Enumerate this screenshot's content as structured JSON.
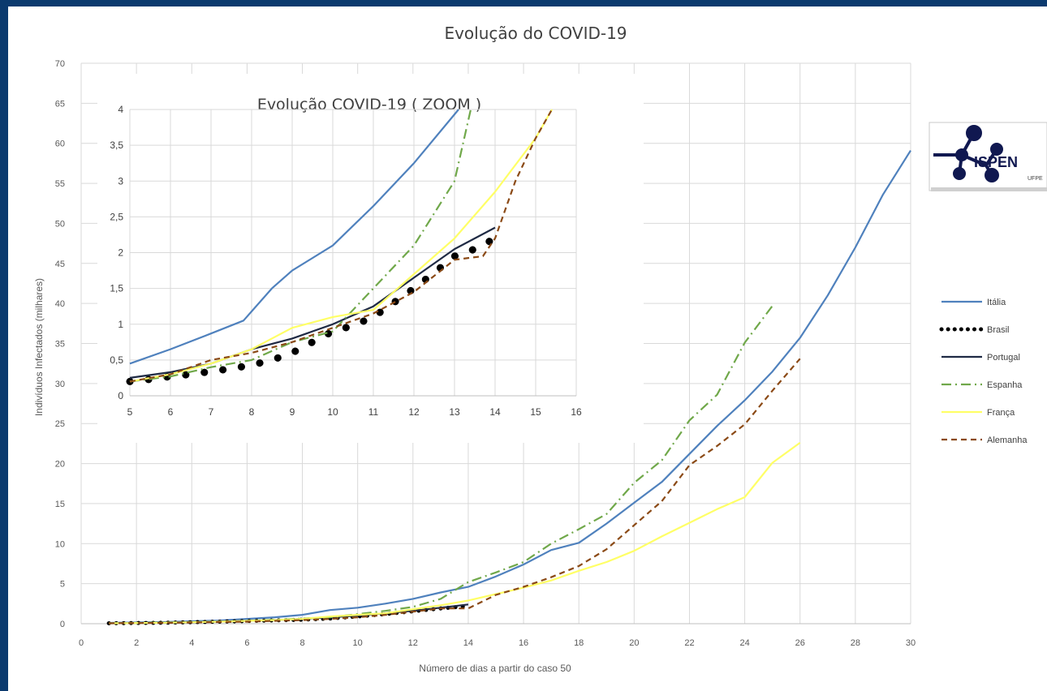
{
  "chart_data": [
    {
      "type": "line",
      "title": "Evolução do COVID-19",
      "xlabel": "Número de dias a partir do caso 50",
      "ylabel": "Indivíduos Infectados (milhares)",
      "xlim": [
        0,
        30
      ],
      "ylim": [
        0,
        70
      ],
      "xticks": [
        "0",
        "2",
        "4",
        "6",
        "8",
        "10",
        "12",
        "14",
        "16",
        "18",
        "20",
        "22",
        "24",
        "26",
        "28",
        "30"
      ],
      "yticks": [
        "0",
        "5",
        "10",
        "15",
        "20",
        "25",
        "30",
        "35",
        "40",
        "45",
        "50",
        "55",
        "60",
        "65",
        "70"
      ],
      "grid": true,
      "legend_position": "right",
      "series": [
        {
          "name": "Itália",
          "color": "#4f81bd",
          "style": "solid",
          "x": [
            1,
            2,
            3,
            4,
            5,
            6,
            7,
            8,
            9,
            10,
            11,
            12,
            13,
            14,
            15,
            16,
            17,
            18,
            19,
            20,
            21,
            22,
            23,
            24,
            25,
            26,
            27,
            28,
            29,
            30
          ],
          "y": [
            0.1,
            0.15,
            0.2,
            0.3,
            0.4,
            0.6,
            0.8,
            1.1,
            1.7,
            2.0,
            2.5,
            3.1,
            3.9,
            4.6,
            5.9,
            7.4,
            9.2,
            10.1,
            12.5,
            15.1,
            17.7,
            21.2,
            24.7,
            27.9,
            31.5,
            35.7,
            41.0,
            47.0,
            53.6,
            59.1
          ]
        },
        {
          "name": "Brasil",
          "color": "#000000",
          "style": "dotted",
          "x": [
            1,
            2,
            3,
            4,
            5,
            6,
            7,
            8,
            9,
            10,
            11,
            12,
            13,
            14
          ],
          "y": [
            0.05,
            0.08,
            0.12,
            0.18,
            0.25,
            0.33,
            0.42,
            0.5,
            0.65,
            0.9,
            1.2,
            1.55,
            1.9,
            2.2
          ]
        },
        {
          "name": "Portugal",
          "color": "#1f2a44",
          "style": "solid",
          "x": [
            1,
            2,
            3,
            4,
            5,
            6,
            7,
            8,
            9,
            10,
            11,
            12,
            13,
            14
          ],
          "y": [
            0.05,
            0.08,
            0.12,
            0.18,
            0.25,
            0.35,
            0.45,
            0.6,
            0.8,
            1.0,
            1.3,
            1.6,
            2.0,
            2.4
          ]
        },
        {
          "name": "Espanha",
          "color": "#70a84a",
          "style": "dashdot",
          "x": [
            1,
            2,
            3,
            4,
            5,
            6,
            7,
            8,
            9,
            10,
            11,
            12,
            13,
            14,
            15,
            16,
            17,
            18,
            19,
            20,
            21,
            22,
            23,
            24,
            25
          ],
          "y": [
            0.05,
            0.1,
            0.15,
            0.2,
            0.25,
            0.35,
            0.5,
            0.65,
            0.8,
            1.2,
            1.6,
            2.1,
            3.1,
            5.2,
            6.4,
            7.7,
            10.0,
            11.8,
            13.7,
            17.6,
            20.4,
            25.4,
            28.6,
            35.1,
            39.7
          ]
        },
        {
          "name": "França",
          "color": "#ffff66",
          "style": "solid",
          "x": [
            1,
            2,
            3,
            4,
            5,
            6,
            7,
            8,
            9,
            10,
            11,
            12,
            13,
            14,
            15,
            16,
            17,
            18,
            19,
            20,
            21,
            22,
            23,
            24,
            25,
            26
          ],
          "y": [
            0.05,
            0.08,
            0.12,
            0.18,
            0.25,
            0.35,
            0.45,
            0.6,
            0.9,
            1.1,
            1.3,
            1.8,
            2.3,
            2.9,
            3.7,
            4.5,
            5.4,
            6.6,
            7.7,
            9.1,
            10.9,
            12.6,
            14.3,
            15.8,
            20.1,
            22.6
          ]
        },
        {
          "name": "Alemanha",
          "color": "#8b4a16",
          "style": "dashed",
          "x": [
            1,
            2,
            3,
            4,
            5,
            6,
            7,
            8,
            9,
            10,
            11,
            12,
            13,
            14,
            15,
            16,
            17,
            18,
            19,
            20,
            21,
            22,
            23,
            24,
            25,
            26
          ],
          "y": [
            0.05,
            0.08,
            0.1,
            0.15,
            0.2,
            0.25,
            0.35,
            0.45,
            0.6,
            0.8,
            1.1,
            1.5,
            1.9,
            1.9,
            3.6,
            4.6,
            5.8,
            7.2,
            9.3,
            12.3,
            15.3,
            19.8,
            22.2,
            24.9,
            29.1,
            33.1
          ]
        }
      ]
    },
    {
      "type": "line",
      "title": "Evolução COVID-19 ( ZOOM )",
      "xlim": [
        5,
        16
      ],
      "ylim": [
        0,
        4
      ],
      "xticks": [
        "5",
        "6",
        "7",
        "8",
        "9",
        "10",
        "11",
        "12",
        "13",
        "14",
        "15",
        "16"
      ],
      "yticks": [
        "0",
        "0,5",
        "1",
        "1,5",
        "2",
        "2,5",
        "3",
        "3,5",
        "4"
      ],
      "grid": true,
      "series": [
        {
          "name": "Itália",
          "x": [
            5,
            6,
            7,
            7.8,
            8.5,
            9,
            10,
            11,
            12,
            13.1
          ],
          "y": [
            0.45,
            0.65,
            0.87,
            1.05,
            1.5,
            1.75,
            2.1,
            2.65,
            3.25,
            4.0
          ]
        },
        {
          "name": "Brasil",
          "x": [
            5,
            5.5,
            6,
            6.5,
            7,
            7.5,
            8,
            8.5,
            9,
            9.5,
            10,
            10.5,
            11,
            11.5,
            12,
            12.5,
            13,
            13.5,
            14
          ],
          "y": [
            0.2,
            0.23,
            0.27,
            0.3,
            0.34,
            0.38,
            0.43,
            0.5,
            0.6,
            0.75,
            0.9,
            0.98,
            1.1,
            1.3,
            1.5,
            1.72,
            1.95,
            2.05,
            2.2
          ]
        },
        {
          "name": "Portugal",
          "x": [
            5,
            6,
            7,
            8,
            9,
            10,
            11,
            12,
            13,
            14
          ],
          "y": [
            0.25,
            0.33,
            0.45,
            0.65,
            0.8,
            1.0,
            1.25,
            1.65,
            2.05,
            2.35
          ]
        },
        {
          "name": "Espanha",
          "x": [
            5,
            6,
            7,
            8,
            9,
            10,
            10.5,
            11,
            12,
            13,
            13.4
          ],
          "y": [
            0.2,
            0.27,
            0.4,
            0.5,
            0.75,
            0.9,
            1.2,
            1.5,
            2.1,
            3.0,
            4.0
          ]
        },
        {
          "name": "França",
          "x": [
            5,
            6,
            7,
            8,
            9,
            10,
            11,
            12,
            13,
            14,
            15,
            15.4
          ],
          "y": [
            0.2,
            0.3,
            0.45,
            0.65,
            0.95,
            1.1,
            1.2,
            1.7,
            2.2,
            2.85,
            3.6,
            4.0
          ]
        },
        {
          "name": "Alemanha",
          "x": [
            5,
            6,
            7,
            8,
            9,
            10,
            11,
            12,
            13,
            13.7,
            14,
            14.5,
            15,
            15.4
          ],
          "y": [
            0.2,
            0.3,
            0.5,
            0.6,
            0.75,
            0.95,
            1.15,
            1.45,
            1.9,
            1.95,
            2.2,
            3.0,
            3.6,
            4.0
          ]
        }
      ]
    }
  ],
  "logo": {
    "text": "ISPEN",
    "subtext": "UFPE",
    "color": "#101850"
  }
}
